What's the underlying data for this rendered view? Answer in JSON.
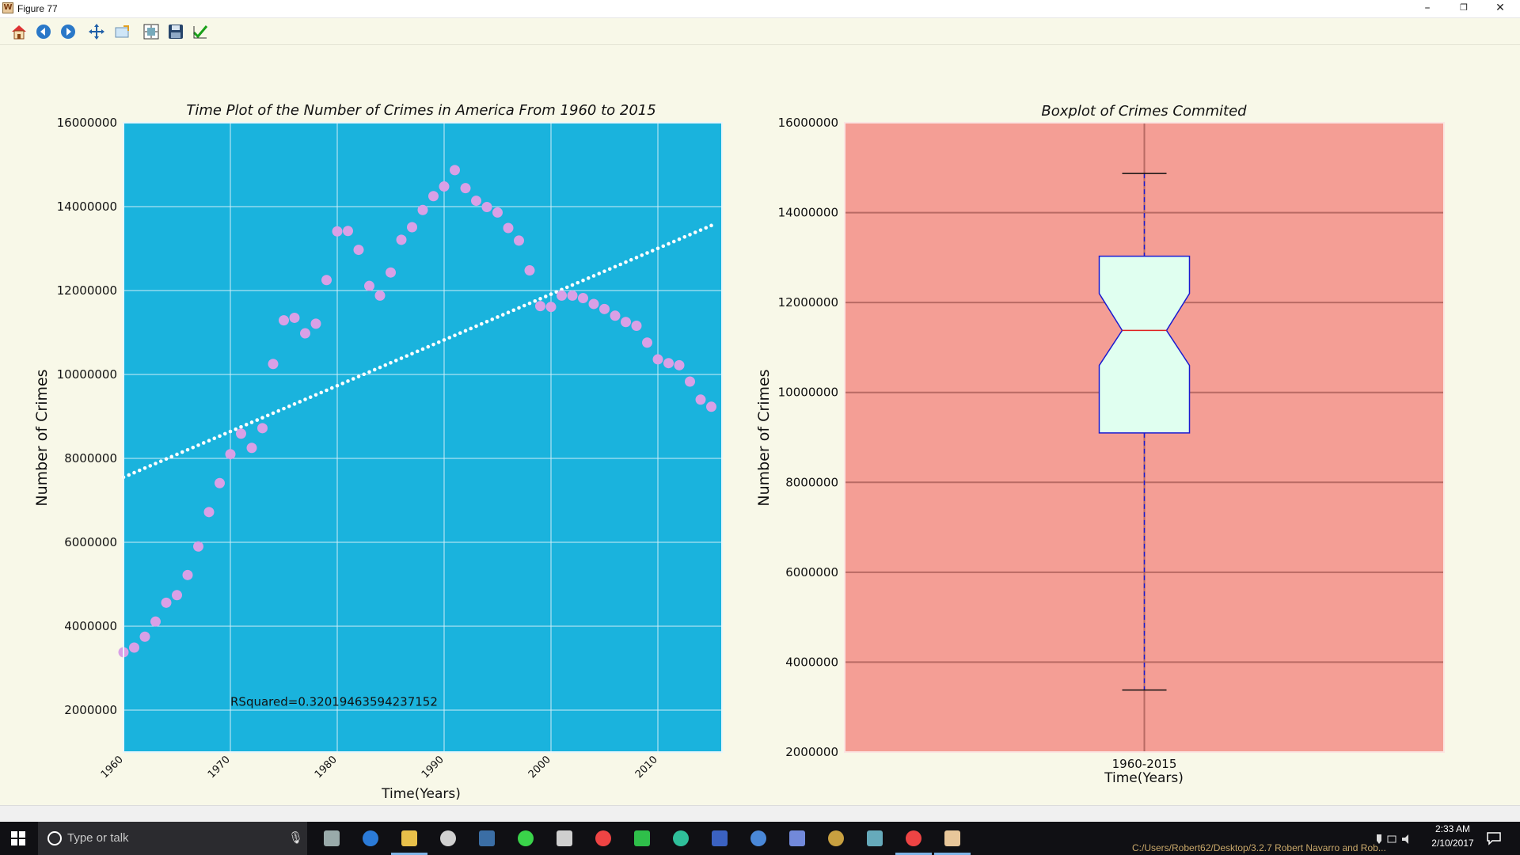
{
  "window": {
    "title": "Figure 77",
    "minimize_symbol": "–",
    "restore_symbol": "❐",
    "close_symbol": "✕"
  },
  "toolbar": {
    "items": [
      {
        "name": "home-icon",
        "tooltip": "Home"
      },
      {
        "name": "back-icon",
        "tooltip": "Back"
      },
      {
        "name": "forward-icon",
        "tooltip": "Forward"
      },
      {
        "name": "pan-icon",
        "tooltip": "Pan"
      },
      {
        "name": "zoom-icon",
        "tooltip": "Zoom"
      },
      {
        "name": "subplots-icon",
        "tooltip": "Configure subplots"
      },
      {
        "name": "save-icon",
        "tooltip": "Save"
      },
      {
        "name": "edit-axes-icon",
        "tooltip": "Edit axes"
      }
    ]
  },
  "left_plot": {
    "title": "Time Plot of the Number of Crimes in America From 1960 to 2015",
    "xlabel": "Time(Years)",
    "ylabel": "Number of Crimes",
    "annotation": "RSquared=0.32019463594237152",
    "bg_color": "#1ab3dd",
    "point_color": "#d9a0e6",
    "trend_color": "#ffffff"
  },
  "right_plot": {
    "title": "Boxplot of Crimes Commited",
    "xlabel": "Time(Years)",
    "ylabel": "Number of Crimes",
    "bg_color": "#f49e95",
    "box_color": "#e0fff0",
    "box_edge_color": "#1a1ad0",
    "median_color": "#e02020"
  },
  "chart_data": [
    {
      "type": "scatter",
      "title": "Time Plot of the Number of Crimes in America From 1960 to 2015",
      "xlabel": "Time(Years)",
      "ylabel": "Number of Crimes",
      "xlim": [
        1960,
        2016
      ],
      "ylim": [
        1000000,
        16000000
      ],
      "x_ticks": [
        1960,
        1970,
        1980,
        1990,
        2000,
        2010
      ],
      "x_tick_labels": [
        "1960",
        "1970",
        "1980",
        "1990",
        "2000",
        "2010"
      ],
      "y_ticks": [
        2000000,
        4000000,
        6000000,
        8000000,
        10000000,
        12000000,
        14000000,
        16000000
      ],
      "y_tick_labels": [
        "2000000",
        "4000000",
        "6000000",
        "8000000",
        "10000000",
        "12000000",
        "14000000",
        "16000000"
      ],
      "grid": true,
      "annotation": "RSquared=0.32019463594237152",
      "series": [
        {
          "x": [
            1960,
            1961,
            1962,
            1963,
            1964,
            1965,
            1966,
            1967,
            1968,
            1969,
            1970,
            1971,
            1972,
            1973,
            1974,
            1975,
            1976,
            1977,
            1978,
            1979,
            1980,
            1981,
            1982,
            1983,
            1984,
            1985,
            1986,
            1987,
            1988,
            1989,
            1990,
            1991,
            1992,
            1993,
            1994,
            1995,
            1996,
            1997,
            1998,
            1999,
            2000,
            2001,
            2002,
            2003,
            2004,
            2005,
            2006,
            2007,
            2008,
            2009,
            2010,
            2011,
            2012,
            2013,
            2014,
            2015
          ],
          "y": [
            3380000,
            3490000,
            3750000,
            4110000,
            4560000,
            4740000,
            5220000,
            5900000,
            6720000,
            7410000,
            8100000,
            8590000,
            8250000,
            8720000,
            10250000,
            11290000,
            11350000,
            10980000,
            11210000,
            12250000,
            13410000,
            13420000,
            12970000,
            12110000,
            11880000,
            12430000,
            13210000,
            13510000,
            13920000,
            14250000,
            14480000,
            14870000,
            14440000,
            14140000,
            13990000,
            13860000,
            13490000,
            13190000,
            12480000,
            11630000,
            11610000,
            11880000,
            11880000,
            11820000,
            11680000,
            11560000,
            11400000,
            11250000,
            11160000,
            10760000,
            10360000,
            10270000,
            10220000,
            9830000,
            9400000,
            9230000
          ]
        },
        {
          "x": [
            1960,
            2015
          ],
          "y": [
            7550000,
            13550000
          ]
        }
      ]
    },
    {
      "type": "box",
      "title": "Boxplot of Crimes Commited",
      "xlabel": "Time(Years)",
      "ylabel": "Number of Crimes",
      "categories": [
        "1960-2015"
      ],
      "ylim": [
        2000000,
        16000000
      ],
      "y_ticks": [
        2000000,
        4000000,
        6000000,
        8000000,
        10000000,
        12000000,
        14000000,
        16000000
      ],
      "y_tick_labels": [
        "2000000",
        "4000000",
        "6000000",
        "8000000",
        "10000000",
        "12000000",
        "14000000",
        "16000000"
      ],
      "grid": true,
      "notched": true,
      "stats": {
        "whisker_low": 3380000,
        "q1": 9100000,
        "notch_low": 10600000,
        "median": 11380000,
        "notch_high": 12200000,
        "q3": 13030000,
        "whisker_high": 14870000
      }
    }
  ],
  "taskbar": {
    "search_placeholder": "Type or talk",
    "clock_time": "2:33 AM",
    "clock_date": "2/10/2017",
    "path_text": "C:/Users/Robert62/Desktop/3.2.7 Robert Navarro and Rob...",
    "apps": [
      "task-view-icon",
      "edge-icon",
      "file-explorer-icon",
      "store-icon",
      "steam-icon",
      "razer-icon",
      "obs-icon",
      "chrome-icon",
      "evernote-icon",
      "app-icon",
      "visual-studio-icon",
      "uplay-icon",
      "discord-icon",
      "media-icon",
      "app2-icon",
      "chrome-2-icon",
      "matplotlib-icon"
    ]
  }
}
